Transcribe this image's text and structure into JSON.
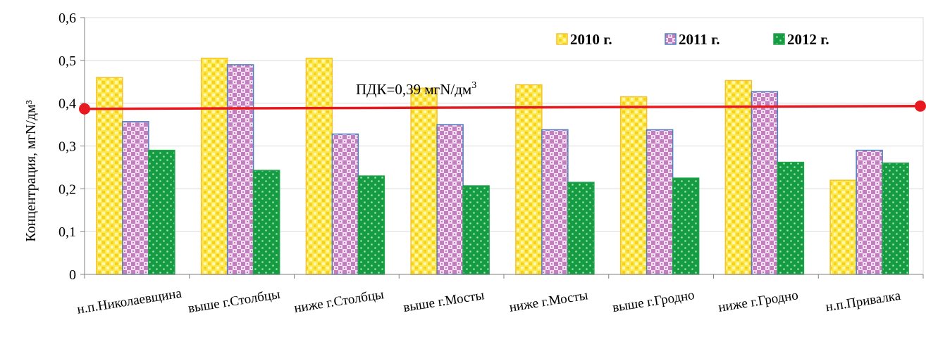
{
  "chart_data": {
    "type": "bar",
    "title": "",
    "xlabel": "",
    "ylabel": "Концентрация, мгN/дм³",
    "ylim": [
      0,
      0.6
    ],
    "yticks": [
      "0",
      "0,1",
      "0,2",
      "0,3",
      "0,4",
      "0,5",
      "0,6"
    ],
    "grid": true,
    "legend_position": "top-right",
    "categories": [
      "н.п.Николаевщина",
      "выше г.Столбцы",
      "ниже г.Столбцы",
      "выше г.Мосты",
      "ниже г.Мосты",
      "выше г.Гродно",
      "ниже г.Гродно",
      "н.п.Привалка"
    ],
    "series": [
      {
        "name": "2010 г.",
        "color": "#FFE033",
        "edge": "#F2C230",
        "values": [
          0.46,
          0.505,
          0.505,
          0.435,
          0.443,
          0.415,
          0.453,
          0.22
        ]
      },
      {
        "name": "2011 г.",
        "color": "#C98BC6",
        "edge": "#4F81BD",
        "values": [
          0.357,
          0.49,
          0.328,
          0.35,
          0.338,
          0.338,
          0.427,
          0.29
        ]
      },
      {
        "name": "2012 г.",
        "color": "#1FA34A",
        "edge": "#1FA34A",
        "values": [
          0.29,
          0.243,
          0.23,
          0.207,
          0.215,
          0.225,
          0.262,
          0.26
        ]
      }
    ],
    "reference_line": {
      "label_main": "ПДК=0,39 мгN/дм",
      "label_sup": "3",
      "value": 0.39,
      "color": "#E8191E"
    }
  }
}
